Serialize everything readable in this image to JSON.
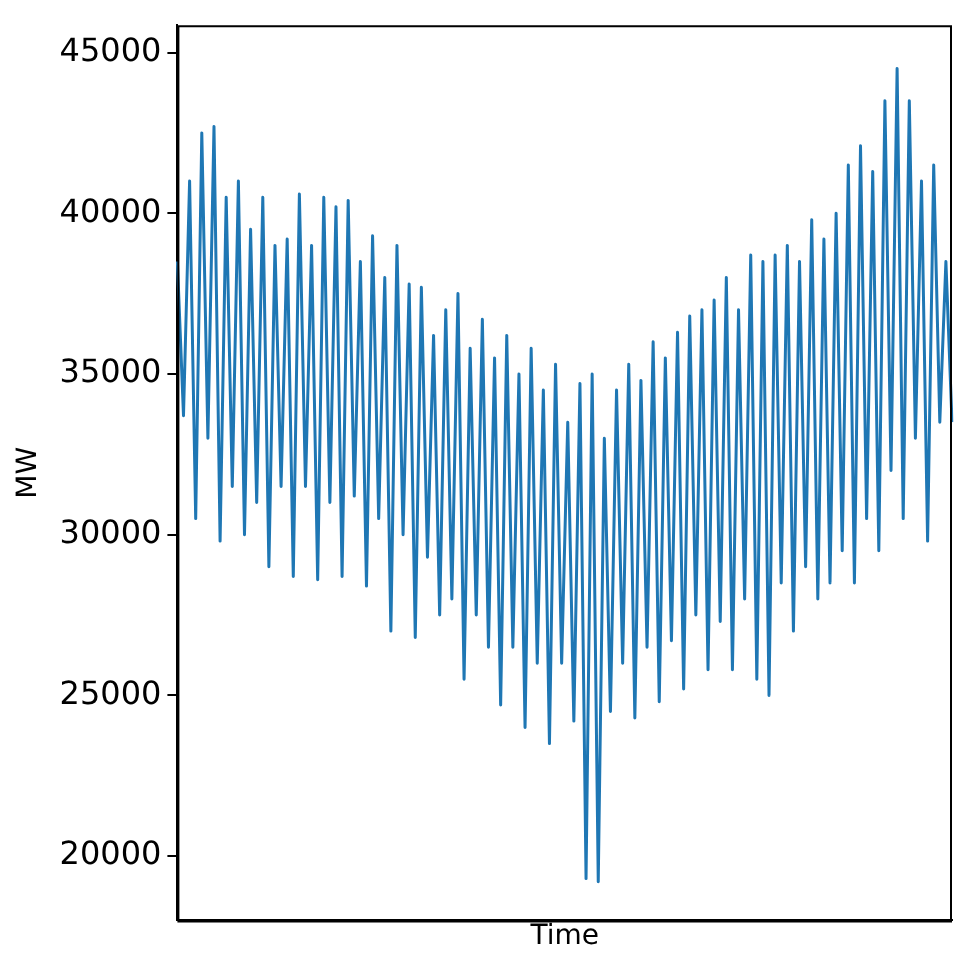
{
  "chart_data": {
    "type": "line",
    "xlabel": "Time",
    "ylabel": "MW",
    "categories": [
      null,
      null,
      null,
      null,
      null,
      null,
      null,
      null,
      null,
      null,
      null,
      null,
      null,
      null,
      null,
      null,
      null,
      null,
      null,
      null,
      null,
      null,
      null,
      null,
      null,
      null,
      null,
      null,
      null,
      null,
      null,
      null,
      null,
      null,
      null,
      null,
      null,
      null,
      null,
      null,
      null,
      null,
      null,
      null,
      null,
      null,
      null,
      null,
      null,
      null,
      null,
      null,
      null,
      null,
      null,
      null,
      null,
      null,
      null,
      null,
      null,
      null,
      null,
      null,
      null,
      null,
      null,
      null,
      null,
      null,
      null,
      null,
      null,
      null,
      null,
      null,
      null,
      null,
      null,
      null,
      null,
      null,
      null,
      null,
      null,
      null,
      null,
      null,
      null,
      null,
      null,
      null,
      null,
      null,
      null,
      null,
      null,
      null,
      null,
      null,
      null,
      null,
      null,
      null,
      null,
      null,
      null,
      null,
      null,
      null,
      null,
      null,
      null,
      null,
      null,
      null,
      null,
      null,
      null,
      null,
      null,
      null,
      null,
      null,
      null,
      null,
      null,
      null
    ],
    "series": [
      {
        "color": "#1f77b4",
        "values": [
          38500,
          33700,
          41000,
          30500,
          42500,
          33000,
          42700,
          29800,
          40500,
          31500,
          41000,
          30000,
          39500,
          31000,
          40500,
          29000,
          39000,
          31500,
          39200,
          28700,
          40600,
          31500,
          39000,
          28600,
          40500,
          31000,
          40200,
          28700,
          40400,
          31200,
          38500,
          28400,
          39300,
          30500,
          38000,
          27000,
          39000,
          30000,
          37800,
          26800,
          37700,
          29300,
          36200,
          27500,
          37000,
          28000,
          37500,
          25500,
          35800,
          27500,
          36700,
          26500,
          35500,
          24700,
          36200,
          26500,
          35000,
          24000,
          35800,
          26000,
          34500,
          23500,
          35300,
          26000,
          33500,
          24200,
          34700,
          19300,
          35000,
          19200,
          33000,
          24500,
          34500,
          26000,
          35300,
          24300,
          34800,
          26500,
          36000,
          24800,
          35500,
          26700,
          36300,
          25200,
          36800,
          27500,
          37000,
          25800,
          37300,
          27300,
          38000,
          25800,
          37000,
          28000,
          38700,
          25500,
          38500,
          25000,
          38700,
          28500,
          39000,
          27000,
          38500,
          29000,
          39800,
          28000,
          39200,
          28500,
          40000,
          29500,
          41500,
          28500,
          42100,
          30500,
          41300,
          29500,
          43500,
          32000,
          44500,
          30500,
          43500,
          33000,
          41000,
          29800,
          41500,
          33500,
          38500,
          33500
        ]
      }
    ],
    "ylim": [
      18000,
      45850
    ],
    "yticks": [
      20000,
      25000,
      30000,
      35000,
      40000,
      45000
    ],
    "grid": false,
    "legend": false,
    "marker": "none",
    "line_style": "solid",
    "tick_labels": "y"
  }
}
